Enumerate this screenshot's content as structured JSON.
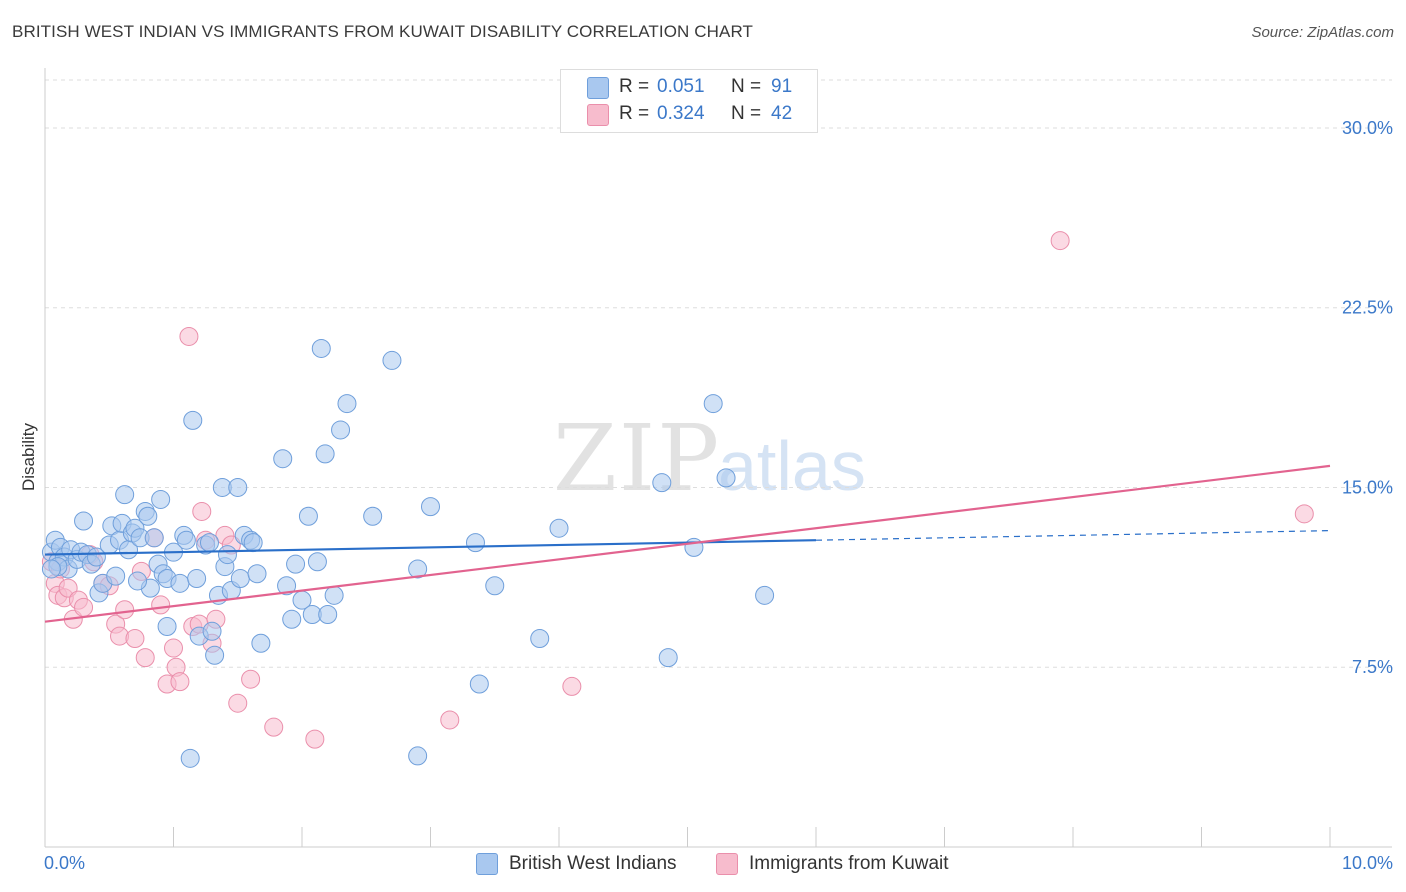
{
  "header": {
    "title": "BRITISH WEST INDIAN VS IMMIGRANTS FROM KUWAIT DISABILITY CORRELATION CHART",
    "source": "Source: ZipAtlas.com"
  },
  "watermark": {
    "zip": "ZIP",
    "atlas": "atlas"
  },
  "legend": {
    "r_label": "R =",
    "n_label": "N =",
    "series": [
      {
        "r": "0.051",
        "n": "91"
      },
      {
        "r": "0.324",
        "n": "42"
      }
    ]
  },
  "bottom_legend": {
    "items": [
      {
        "name": "British West Indians"
      },
      {
        "name": "Immigrants from Kuwait"
      }
    ]
  },
  "colors": {
    "blue_fill": "#a9c8ef",
    "blue_stroke": "#6f9fdb",
    "blue_line": "#2a6fc9",
    "pink_fill": "#f7bccd",
    "pink_stroke": "#ea8fab",
    "pink_line": "#e2638f",
    "grid": "#dddddd",
    "tick_text": "#3b78c9"
  },
  "chart_data": {
    "type": "scatter",
    "title": "BRITISH WEST INDIAN VS IMMIGRANTS FROM KUWAIT DISABILITY CORRELATION CHART",
    "xlabel": "",
    "ylabel": "Disability",
    "xlim": [
      0,
      10
    ],
    "ylim": [
      0,
      32
    ],
    "x_tick_labels": [
      "0.0%",
      "10.0%"
    ],
    "y_ticks": [
      7.5,
      15.0,
      22.5,
      30.0
    ],
    "y_tick_labels": [
      "7.5%",
      "15.0%",
      "22.5%",
      "30.0%"
    ],
    "grid": "horizontal dashed",
    "legend_position": "top-center",
    "series": [
      {
        "name": "British West Indians",
        "r": 0.051,
        "n": 91,
        "trend": {
          "x": [
            0,
            6.0
          ],
          "y": [
            12.2,
            12.8
          ],
          "dashed_to": [
            10,
            13.2
          ]
        },
        "points": [
          [
            0.05,
            12.3
          ],
          [
            0.08,
            12.8
          ],
          [
            0.1,
            11.9
          ],
          [
            0.12,
            12.5
          ],
          [
            0.15,
            12.1
          ],
          [
            0.18,
            11.6
          ],
          [
            0.2,
            12.4
          ],
          [
            0.25,
            12.0
          ],
          [
            0.28,
            12.3
          ],
          [
            0.3,
            13.6
          ],
          [
            0.33,
            12.2
          ],
          [
            0.36,
            11.8
          ],
          [
            0.4,
            12.1
          ],
          [
            0.42,
            10.6
          ],
          [
            0.45,
            11.0
          ],
          [
            0.5,
            12.6
          ],
          [
            0.52,
            13.4
          ],
          [
            0.55,
            11.3
          ],
          [
            0.58,
            12.8
          ],
          [
            0.6,
            13.5
          ],
          [
            0.62,
            14.7
          ],
          [
            0.65,
            12.4
          ],
          [
            0.68,
            13.1
          ],
          [
            0.7,
            13.3
          ],
          [
            0.74,
            12.9
          ],
          [
            0.78,
            14.0
          ],
          [
            0.8,
            13.8
          ],
          [
            0.82,
            10.8
          ],
          [
            0.85,
            12.9
          ],
          [
            0.88,
            11.8
          ],
          [
            0.9,
            14.5
          ],
          [
            0.92,
            11.4
          ],
          [
            0.95,
            11.2
          ],
          [
            1.0,
            12.3
          ],
          [
            1.05,
            11.0
          ],
          [
            1.08,
            13.0
          ],
          [
            1.1,
            12.8
          ],
          [
            1.15,
            17.8
          ],
          [
            1.18,
            11.2
          ],
          [
            1.2,
            8.8
          ],
          [
            1.25,
            12.6
          ],
          [
            1.28,
            12.7
          ],
          [
            1.3,
            9.0
          ],
          [
            1.32,
            8.0
          ],
          [
            1.35,
            10.5
          ],
          [
            1.38,
            15.0
          ],
          [
            1.4,
            11.7
          ],
          [
            1.42,
            12.2
          ],
          [
            1.45,
            10.7
          ],
          [
            1.5,
            15.0
          ],
          [
            1.52,
            11.2
          ],
          [
            1.55,
            13.0
          ],
          [
            1.6,
            12.8
          ],
          [
            1.62,
            12.7
          ],
          [
            1.65,
            11.4
          ],
          [
            1.68,
            8.5
          ],
          [
            1.85,
            16.2
          ],
          [
            1.88,
            10.9
          ],
          [
            1.92,
            9.5
          ],
          [
            1.95,
            11.8
          ],
          [
            2.0,
            10.3
          ],
          [
            2.05,
            13.8
          ],
          [
            2.08,
            9.7
          ],
          [
            2.12,
            11.9
          ],
          [
            2.15,
            20.8
          ],
          [
            2.18,
            16.4
          ],
          [
            2.2,
            9.7
          ],
          [
            2.25,
            10.5
          ],
          [
            2.3,
            17.4
          ],
          [
            2.35,
            18.5
          ],
          [
            2.55,
            13.8
          ],
          [
            2.7,
            20.3
          ],
          [
            2.9,
            11.6
          ],
          [
            3.0,
            14.2
          ],
          [
            3.35,
            12.7
          ],
          [
            3.5,
            10.9
          ],
          [
            3.85,
            8.7
          ],
          [
            4.0,
            13.3
          ],
          [
            4.8,
            15.2
          ],
          [
            5.05,
            12.5
          ],
          [
            5.2,
            18.5
          ],
          [
            5.3,
            15.4
          ],
          [
            5.6,
            10.5
          ],
          [
            4.85,
            7.9
          ],
          [
            2.9,
            3.8
          ],
          [
            1.13,
            3.7
          ],
          [
            3.38,
            6.8
          ],
          [
            0.1,
            11.7
          ],
          [
            0.05,
            11.6
          ],
          [
            0.95,
            9.2
          ],
          [
            0.72,
            11.1
          ]
        ]
      },
      {
        "name": "Immigrants from Kuwait",
        "r": 0.324,
        "n": 42,
        "trend": {
          "x": [
            0,
            10
          ],
          "y": [
            9.4,
            15.9
          ]
        },
        "points": [
          [
            0.05,
            11.9
          ],
          [
            0.08,
            11.0
          ],
          [
            0.1,
            10.5
          ],
          [
            0.12,
            11.6
          ],
          [
            0.15,
            10.4
          ],
          [
            0.18,
            10.8
          ],
          [
            0.22,
            9.5
          ],
          [
            0.26,
            10.3
          ],
          [
            0.3,
            10.0
          ],
          [
            0.35,
            12.2
          ],
          [
            0.38,
            11.9
          ],
          [
            0.45,
            11.0
          ],
          [
            0.5,
            10.9
          ],
          [
            0.55,
            9.3
          ],
          [
            0.58,
            8.8
          ],
          [
            0.62,
            9.9
          ],
          [
            0.7,
            8.7
          ],
          [
            0.75,
            11.5
          ],
          [
            0.78,
            7.9
          ],
          [
            0.85,
            12.9
          ],
          [
            0.9,
            10.1
          ],
          [
            0.95,
            6.8
          ],
          [
            1.0,
            8.3
          ],
          [
            1.02,
            7.5
          ],
          [
            1.05,
            6.9
          ],
          [
            1.12,
            21.3
          ],
          [
            1.15,
            9.2
          ],
          [
            1.2,
            9.3
          ],
          [
            1.22,
            14.0
          ],
          [
            1.25,
            12.8
          ],
          [
            1.3,
            8.5
          ],
          [
            1.33,
            9.5
          ],
          [
            1.4,
            13.0
          ],
          [
            1.45,
            12.6
          ],
          [
            1.5,
            6.0
          ],
          [
            1.6,
            7.0
          ],
          [
            1.78,
            5.0
          ],
          [
            2.1,
            4.5
          ],
          [
            3.15,
            5.3
          ],
          [
            4.1,
            6.7
          ],
          [
            7.9,
            25.3
          ],
          [
            9.8,
            13.9
          ]
        ]
      }
    ]
  }
}
